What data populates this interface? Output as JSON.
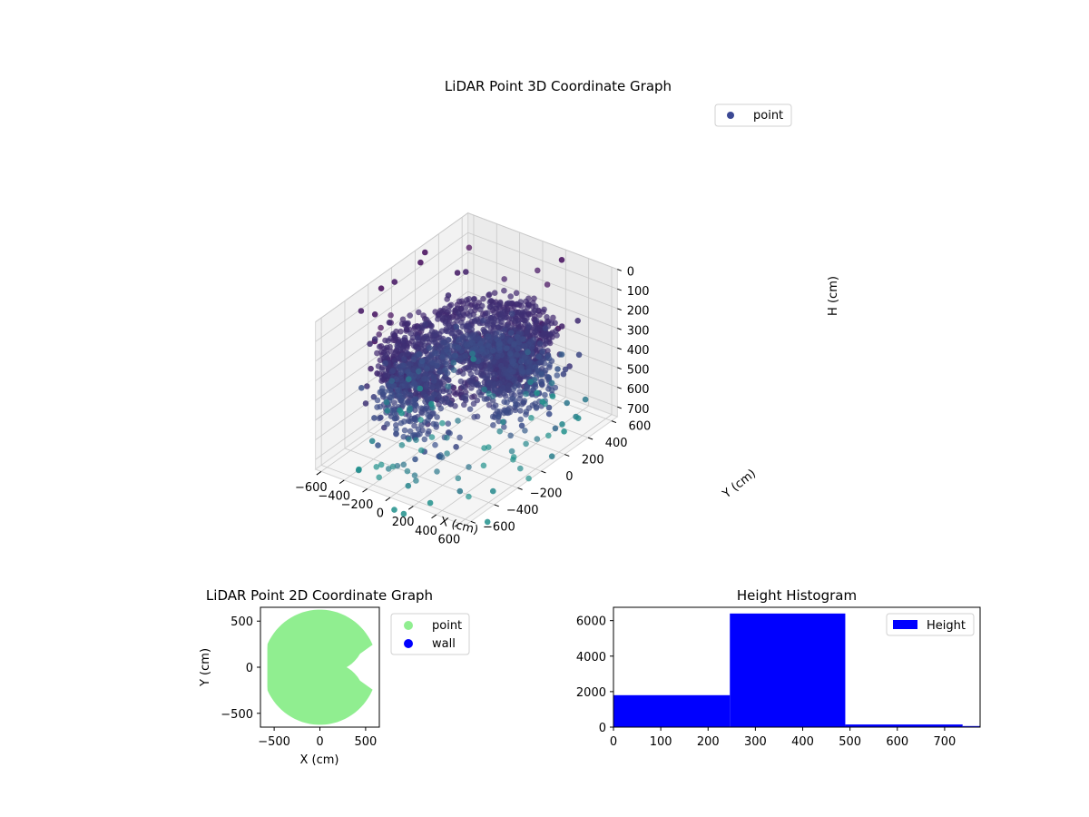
{
  "chart_data": [
    {
      "type": "scatter3d",
      "title": "LiDAR Point 3D Coordinate Graph",
      "xlabel": "X (cm)",
      "ylabel": "Y (cm)",
      "zlabel": "H (cm)",
      "xticks": [
        "−600",
        "−400",
        "−200",
        "0",
        "200",
        "400",
        "600"
      ],
      "yticks": [
        "−600",
        "−400",
        "−200",
        "0",
        "200",
        "400",
        "600"
      ],
      "zticks": [
        "0",
        "100",
        "200",
        "300",
        "400",
        "500",
        "600",
        "700"
      ],
      "xlim": [
        -650,
        650
      ],
      "ylim": [
        -650,
        650
      ],
      "zlim": [
        750,
        0
      ],
      "z_axis_inverted": true,
      "grid": true,
      "legend": {
        "position": "top-right",
        "entries": [
          {
            "label": "point",
            "color": "#3b4994"
          }
        ]
      },
      "colormap": "viridis",
      "series": [
        {
          "name": "point",
          "description_of_shape": "concentric ring layers of points around the sensor; dense core near H 250-450 cm, sparse far points near H 0-700 cm"
        }
      ]
    },
    {
      "type": "scatter",
      "title": "LiDAR Point 2D Coordinate Graph",
      "xlabel": "X (cm)",
      "ylabel": "Y (cm)",
      "xticks": [
        "−500",
        "0",
        "500"
      ],
      "yticks": [
        "500",
        "0",
        "−500"
      ],
      "xlim": [
        -650,
        650
      ],
      "ylim": [
        -650,
        650
      ],
      "legend": {
        "position": "outside-right",
        "entries": [
          {
            "label": "point",
            "color": "#90ee90"
          },
          {
            "label": "wall",
            "color": "#0000ff"
          }
        ]
      }
    },
    {
      "type": "bar",
      "title": "Height Histogram",
      "xticks": [
        "0",
        "100",
        "200",
        "300",
        "400",
        "500",
        "600",
        "700"
      ],
      "yticks": [
        "0",
        "2000",
        "4000",
        "6000"
      ],
      "xlim": [
        0,
        775
      ],
      "ylim": [
        0,
        6750
      ],
      "bins": [
        {
          "x0": 0,
          "x1": 246,
          "count": 1800
        },
        {
          "x0": 246,
          "x1": 490,
          "count": 6400
        },
        {
          "x0": 490,
          "x1": 738,
          "count": 150
        },
        {
          "x0": 738,
          "x1": 775,
          "count": 60
        }
      ],
      "color": "#0000ff",
      "legend": {
        "position": "top-right",
        "entries": [
          {
            "label": "Height",
            "color": "#0000ff"
          }
        ]
      }
    }
  ]
}
